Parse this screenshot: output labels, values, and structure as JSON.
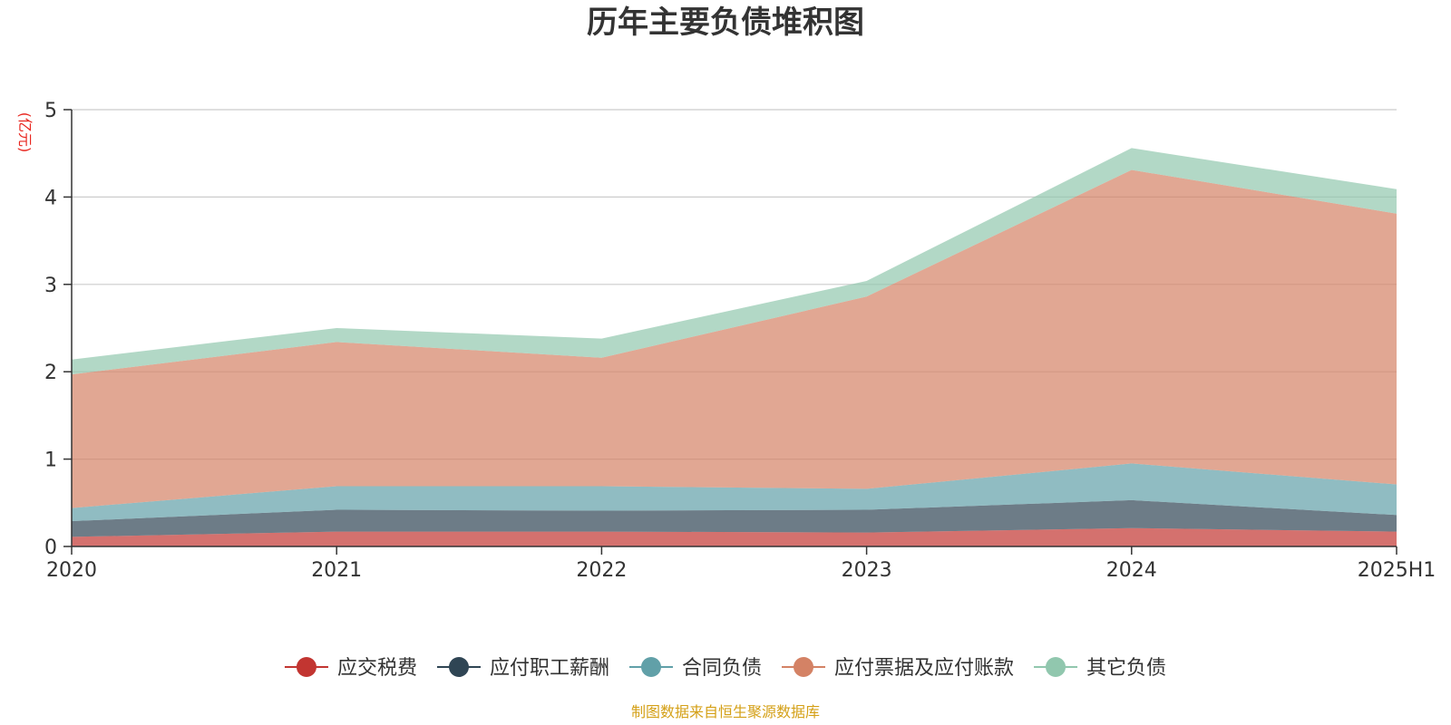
{
  "chart_data": {
    "type": "area",
    "stacked": true,
    "title": "历年主要负债堆积图",
    "unit_label": "(亿元)",
    "x": [
      "2020",
      "2021",
      "2022",
      "2023",
      "2024",
      "2025H1"
    ],
    "ylim": [
      0,
      5
    ],
    "yticks": [
      "0",
      "1",
      "2",
      "3",
      "4",
      "5"
    ],
    "grid": true,
    "legend_position": "bottom",
    "series": [
      {
        "name": "应交税费",
        "color": "#c23531",
        "values": [
          0.11,
          0.17,
          0.17,
          0.16,
          0.21,
          0.17
        ]
      },
      {
        "name": "应付职工薪酬",
        "color": "#2f4554",
        "values": [
          0.18,
          0.25,
          0.24,
          0.26,
          0.32,
          0.19
        ]
      },
      {
        "name": "合同负债",
        "color": "#61a0a8",
        "values": [
          0.15,
          0.27,
          0.28,
          0.24,
          0.42,
          0.35
        ]
      },
      {
        "name": "应付票据及应付账款",
        "color": "#d48265",
        "values": [
          1.53,
          1.65,
          1.47,
          2.2,
          3.36,
          3.1
        ]
      },
      {
        "name": "其它负债",
        "color": "#91c7ae",
        "values": [
          0.17,
          0.16,
          0.22,
          0.18,
          0.25,
          0.28
        ]
      }
    ]
  },
  "source_note": "制图数据来自恒生聚源数据库",
  "colors": {
    "title": "#333333",
    "unit": "#e8261f",
    "source": "#d4a017",
    "grid": "#cccccc",
    "axis": "#333333"
  }
}
